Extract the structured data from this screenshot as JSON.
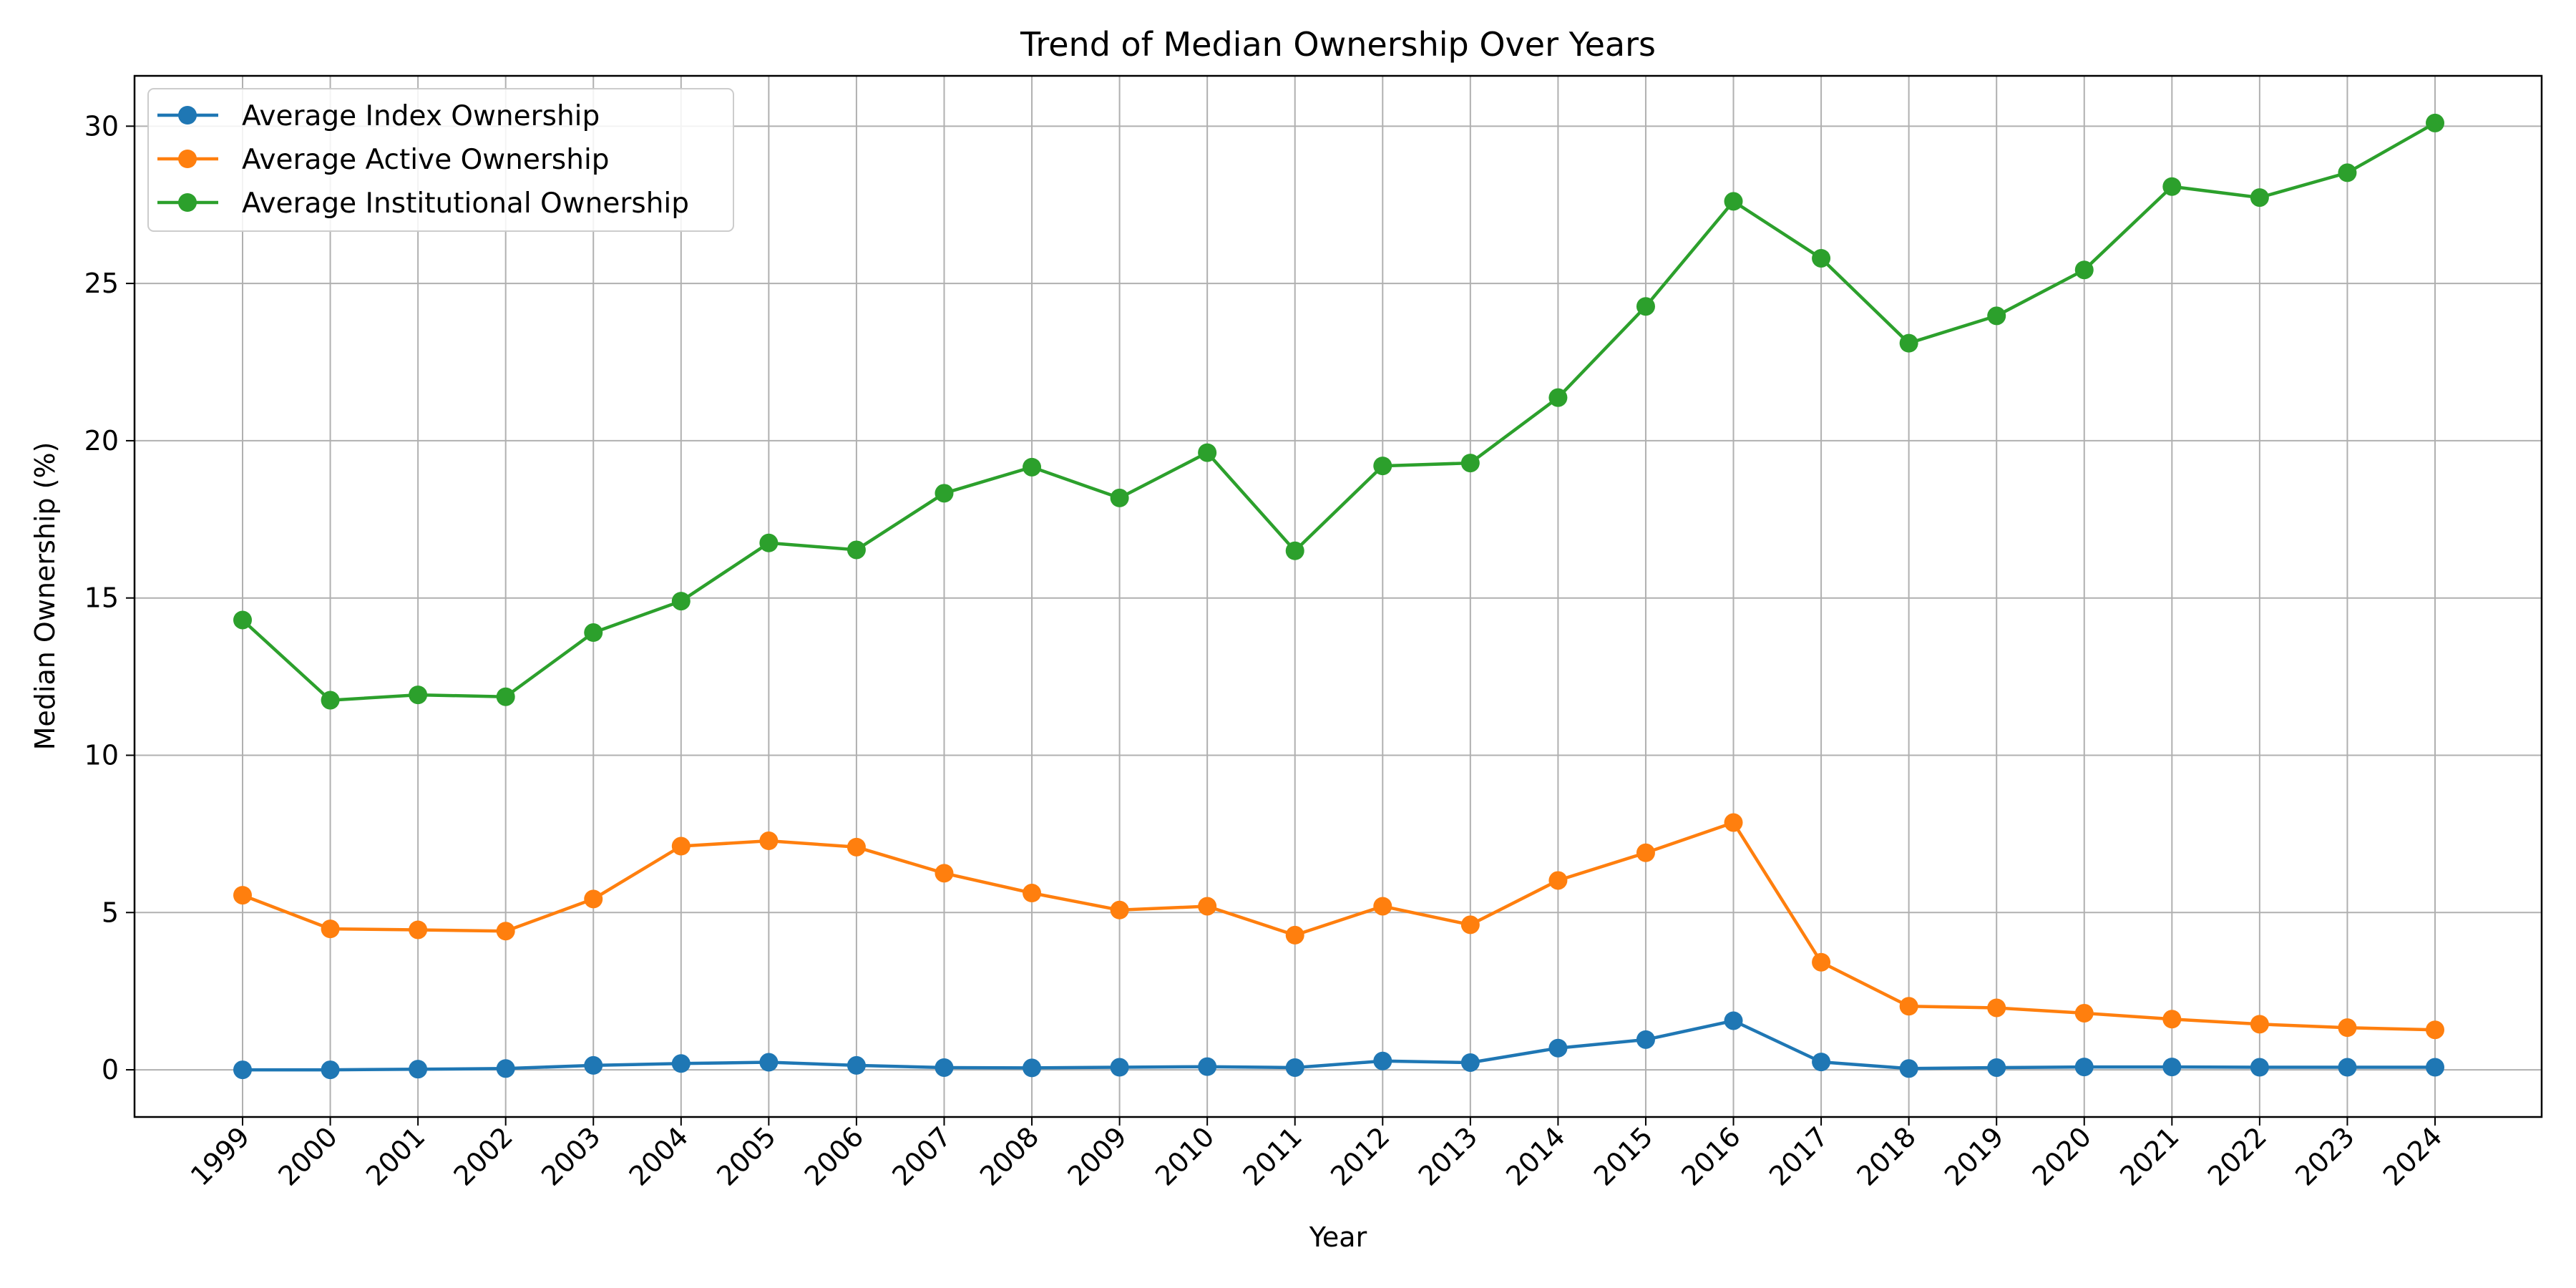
{
  "chart_data": {
    "type": "line",
    "title": "Trend of Median Ownership Over Years",
    "xlabel": "Year",
    "ylabel": "Median Ownership (%)",
    "x": [
      "1999",
      "2000",
      "2001",
      "2002",
      "2003",
      "2004",
      "2005",
      "2006",
      "2007",
      "2008",
      "2009",
      "2010",
      "2011",
      "2012",
      "2013",
      "2014",
      "2015",
      "2016",
      "2017",
      "2018",
      "2019",
      "2020",
      "2021",
      "2022",
      "2023",
      "2024"
    ],
    "ylim": [
      -1.5,
      31.6
    ],
    "yticks": [
      0,
      5,
      10,
      15,
      20,
      25,
      30
    ],
    "grid": true,
    "legend_position": "top-left",
    "marker": "circle",
    "series": [
      {
        "name": "Average Index Ownership",
        "color": "#1f77b4",
        "values": [
          0.0,
          0.0,
          0.02,
          0.04,
          0.14,
          0.2,
          0.24,
          0.14,
          0.07,
          0.06,
          0.08,
          0.1,
          0.07,
          0.28,
          0.23,
          0.69,
          0.96,
          1.56,
          0.25,
          0.04,
          0.07,
          0.09,
          0.09,
          0.08,
          0.08,
          0.08
        ]
      },
      {
        "name": "Average Active Ownership",
        "color": "#ff7f0e",
        "values": [
          5.55,
          4.48,
          4.45,
          4.41,
          5.43,
          7.11,
          7.28,
          7.08,
          6.25,
          5.62,
          5.08,
          5.2,
          4.28,
          5.2,
          4.61,
          6.02,
          6.9,
          7.86,
          3.42,
          2.02,
          1.97,
          1.8,
          1.61,
          1.45,
          1.34,
          1.27
        ]
      },
      {
        "name": "Average Institutional Ownership",
        "color": "#2ca02c",
        "values": [
          14.3,
          11.75,
          11.92,
          11.86,
          13.9,
          14.9,
          16.75,
          16.53,
          18.33,
          19.16,
          18.18,
          19.62,
          16.5,
          19.2,
          19.29,
          21.37,
          24.27,
          27.61,
          25.8,
          23.1,
          23.97,
          25.43,
          28.08,
          27.73,
          28.52,
          30.1
        ]
      }
    ]
  }
}
